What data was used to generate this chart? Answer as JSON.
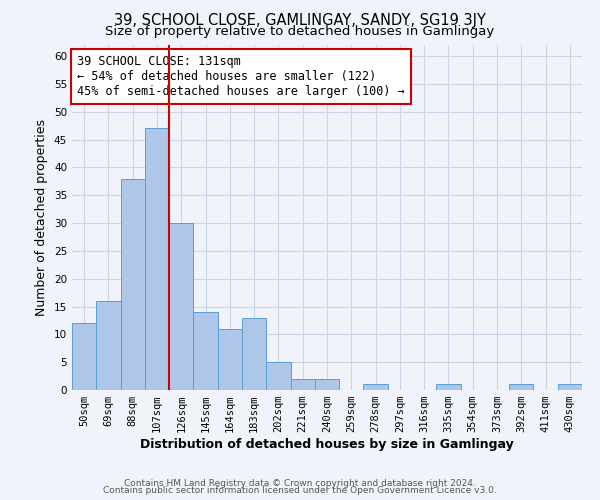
{
  "title": "39, SCHOOL CLOSE, GAMLINGAY, SANDY, SG19 3JY",
  "subtitle": "Size of property relative to detached houses in Gamlingay",
  "xlabel": "Distribution of detached houses by size in Gamlingay",
  "ylabel": "Number of detached properties",
  "footer_line1": "Contains HM Land Registry data © Crown copyright and database right 2024.",
  "footer_line2": "Contains public sector information licensed under the Open Government Licence v3.0.",
  "bin_labels": [
    "50sqm",
    "69sqm",
    "88sqm",
    "107sqm",
    "126sqm",
    "145sqm",
    "164sqm",
    "183sqm",
    "202sqm",
    "221sqm",
    "240sqm",
    "259sqm",
    "278sqm",
    "297sqm",
    "316sqm",
    "335sqm",
    "354sqm",
    "373sqm",
    "392sqm",
    "411sqm",
    "430sqm"
  ],
  "bar_heights": [
    12,
    16,
    38,
    47,
    30,
    14,
    11,
    13,
    5,
    2,
    2,
    0,
    1,
    0,
    0,
    1,
    0,
    0,
    1,
    0,
    1
  ],
  "bar_color": "#aec6e8",
  "bar_edge_color": "#5a9fd4",
  "ylim": [
    0,
    62
  ],
  "yticks": [
    0,
    5,
    10,
    15,
    20,
    25,
    30,
    35,
    40,
    45,
    50,
    55,
    60
  ],
  "annotation_title": "39 SCHOOL CLOSE: 131sqm",
  "annotation_line2": "← 54% of detached houses are smaller (122)",
  "annotation_line3": "45% of semi-detached houses are larger (100) →",
  "annotation_box_color": "#ffffff",
  "annotation_box_edge_color": "#cc0000",
  "redline_x": 3.5,
  "redline_color": "#cc0000",
  "background_color": "#f0f4fa",
  "grid_color": "#c8d4e8",
  "title_fontsize": 10.5,
  "subtitle_fontsize": 9.5,
  "axis_label_fontsize": 9,
  "tick_fontsize": 7.5,
  "annotation_fontsize": 8.5,
  "footer_fontsize": 6.5
}
